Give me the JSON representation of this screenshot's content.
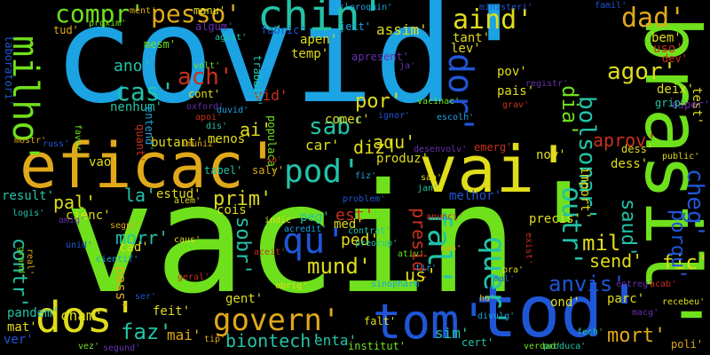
{
  "title": "word cloud",
  "palette": {
    "blue": "#1ba3e3",
    "green": "#6fe01c",
    "yellow": "#e0dd1a",
    "orange": "#e0a91a",
    "teal": "#22c3a8",
    "navy": "#1f56d6",
    "purple": "#6a2fb0",
    "red": "#c9301d"
  },
  "words": [
    {
      "text": "covid'"
    },
    {
      "text": "vacin'"
    },
    {
      "text": "brasil'"
    },
    {
      "text": "eficac'"
    },
    {
      "text": "vai'"
    },
    {
      "text": "tod'"
    },
    {
      "text": "chin'"
    },
    {
      "text": "pod'"
    },
    {
      "text": "dos'"
    },
    {
      "text": "govern'"
    },
    {
      "text": "tom'"
    },
    {
      "text": "qu'"
    },
    {
      "text": "compr'"
    },
    {
      "text": "pesso'"
    },
    {
      "text": "aind'"
    },
    {
      "text": "dad'"
    },
    {
      "text": "milho'"
    },
    {
      "text": "dor'"
    },
    {
      "text": "bolsonar'"
    },
    {
      "text": "dia'"
    },
    {
      "text": "agor'"
    },
    {
      "text": "sab'"
    },
    {
      "text": "por'"
    },
    {
      "text": "cas'"
    },
    {
      "text": "ach'"
    },
    {
      "text": "mund'"
    },
    {
      "text": "outr'"
    },
    {
      "text": "quer'"
    },
    {
      "text": "fal'"
    },
    {
      "text": "mil"
    },
    {
      "text": "anvis'"
    },
    {
      "text": "mort'"
    },
    {
      "text": "faz'"
    },
    {
      "text": "cheg'"
    },
    {
      "text": "est'"
    },
    {
      "text": "aprov'"
    },
    {
      "text": "ano'"
    },
    {
      "text": "ai'"
    },
    {
      "text": "diz'"
    },
    {
      "text": "aqu'"
    },
    {
      "text": "pal'"
    },
    {
      "text": "la'"
    },
    {
      "text": "contr'"
    },
    {
      "text": "sobr'"
    },
    {
      "text": "prim'"
    },
    {
      "text": "ped'"
    },
    {
      "text": "presid'"
    },
    {
      "text": "morr'"
    },
    {
      "text": "send'"
    },
    {
      "text": "fic'"
    },
    {
      "text": "saud'"
    },
    {
      "text": "biontech'"
    },
    {
      "text": "porqu'"
    },
    {
      "text": "cham'"
    },
    {
      "text": "sim'"
    },
    {
      "text": "us'"
    },
    {
      "text": "vid'"
    },
    {
      "text": "nenhum'"
    },
    {
      "text": "car'"
    },
    {
      "text": "tant'"
    },
    {
      "text": "lev'"
    },
    {
      "text": "assim'"
    },
    {
      "text": "apen'"
    },
    {
      "text": "temp'"
    },
    {
      "text": "comec'"
    },
    {
      "text": "vao'"
    },
    {
      "text": "mai'"
    },
    {
      "text": "enta'"
    },
    {
      "text": "pass'"
    },
    {
      "text": "cad'"
    },
    {
      "text": "med'"
    },
    {
      "text": "produz'"
    },
    {
      "text": "menos'"
    },
    {
      "text": "butant'"
    },
    {
      "text": "cienc'"
    },
    {
      "text": "estud'"
    },
    {
      "text": "cois'"
    },
    {
      "text": "feit'"
    },
    {
      "text": "parc'"
    },
    {
      "text": "gent'"
    },
    {
      "text": "melhor'"
    },
    {
      "text": "precis'"
    },
    {
      "text": "uso'"
    },
    {
      "text": "bem'"
    },
    {
      "text": "test'"
    },
    {
      "text": "deix'"
    },
    {
      "text": "pandem'"
    },
    {
      "text": "result'"
    },
    {
      "text": "pov'"
    },
    {
      "text": "pais'"
    },
    {
      "text": "peg'"
    },
    {
      "text": "nov'"
    },
    {
      "text": "dess'"
    },
    {
      "text": "import'"
    },
    {
      "text": "mat'"
    },
    {
      "text": "ver'"
    },
    {
      "text": "falt'"
    },
    {
      "text": "cert'"
    },
    {
      "text": "institut'"
    },
    {
      "text": "poli'"
    },
    {
      "text": "ond'"
    },
    {
      "text": "sinopharm"
    },
    {
      "text": "algum'"
    },
    {
      "text": "quant'"
    },
    {
      "text": "cont'"
    },
    {
      "text": "trabalh'"
    },
    {
      "text": "populaca'"
    },
    {
      "text": "tud'"
    },
    {
      "text": "laboratori'"
    },
    {
      "text": "entend'"
    },
    {
      "text": "esper'"
    },
    {
      "text": "dev'"
    },
    {
      "text": "dess'"
    },
    {
      "text": "grip'"
    },
    {
      "text": "mesm'"
    },
    {
      "text": "saly'"
    },
    {
      "text": "fabric'"
    },
    {
      "text": "jeit'"
    },
    {
      "text": "apresent'"
    },
    {
      "text": "emerg'"
    },
    {
      "text": "manu'"
    },
    {
      "text": "tabel'"
    },
    {
      "text": "vacinac'"
    },
    {
      "text": "imuniz'"
    },
    {
      "text": "ministeri'"
    },
    {
      "text": "cloroquin'"
    },
    {
      "text": "desenvolv'"
    },
    {
      "text": "grav'"
    },
    {
      "text": "public'"
    },
    {
      "text": "agost'"
    },
    {
      "text": "volt'"
    },
    {
      "text": "segur'"
    },
    {
      "text": "problem'"
    },
    {
      "text": "acredit'"
    },
    {
      "text": "segund'"
    },
    {
      "text": "anunci'"
    },
    {
      "text": "caus'"
    },
    {
      "text": "produca'"
    },
    {
      "text": "verdad'"
    },
    {
      "text": "tip'"
    },
    {
      "text": "ignor'"
    },
    {
      "text": "escolh'"
    },
    {
      "text": "registr'"
    },
    {
      "text": "exist'"
    },
    {
      "text": "pra'"
    },
    {
      "text": "jan'"
    },
    {
      "text": "vez'"
    },
    {
      "text": "nao'"
    },
    {
      "text": "ser'"
    },
    {
      "text": "fiz'"
    },
    {
      "text": "ja'"
    },
    {
      "text": "so'"
    },
    {
      "text": "sao'"
    },
    {
      "text": "dis'"
    },
    {
      "text": "proxim'"
    },
    {
      "text": "ment'"
    },
    {
      "text": "famil'"
    },
    {
      "text": "divulg'"
    },
    {
      "text": "macg'"
    },
    {
      "text": "aceit'"
    },
    {
      "text": "alem'"
    },
    {
      "text": "contrat'"
    },
    {
      "text": "favor'"
    },
    {
      "text": "mostr'"
    },
    {
      "text": "russ'"
    },
    {
      "text": "duvid'"
    },
    {
      "text": "oxford'"
    },
    {
      "text": "apoi'"
    },
    {
      "text": "indic'"
    },
    {
      "text": "logis'"
    },
    {
      "text": "grand'"
    },
    {
      "text": "real'"
    },
    {
      "text": "unid'"
    },
    {
      "text": "cientif'"
    },
    {
      "text": "amig'"
    },
    {
      "text": "geral'"
    },
    {
      "text": "obrig'"
    },
    {
      "text": "preocup'"
    },
    {
      "text": "ativ'"
    },
    {
      "text": "ha'"
    },
    {
      "text": "mal'"
    },
    {
      "text": "tir'"
    },
    {
      "text": "entreg'"
    },
    {
      "text": "acab'"
    },
    {
      "text": "recebeu'"
    },
    {
      "text": "fech'"
    }
  ]
}
